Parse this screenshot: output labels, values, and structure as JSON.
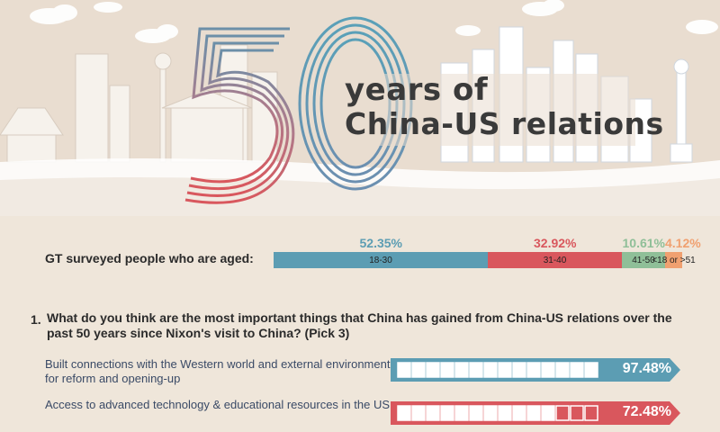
{
  "header": {
    "big_number": "50",
    "title_line1": "years of",
    "title_line2": "China-US relations"
  },
  "colors": {
    "teal": "#5c9db3",
    "red": "#d9575d",
    "green": "#8fbf98",
    "orange": "#f0a070",
    "background": "#efe6da"
  },
  "survey": {
    "label": "GT surveyed people who are aged:"
  },
  "question1": {
    "number": "1.",
    "text": "What do you think are the most important things that China has gained from China-US relations over the past 50 years since Nixon's visit to China? (Pick 3)"
  },
  "chart_data": [
    {
      "type": "bar",
      "title": "GT surveyed people who are aged:",
      "categories": [
        "18-30",
        "31-40",
        "41-50",
        "<18 or >51"
      ],
      "values": [
        52.35,
        32.92,
        10.61,
        4.12
      ],
      "value_labels": [
        "52.35%",
        "32.92%",
        "10.61%",
        "4.12%"
      ],
      "colors": [
        "#5c9db3",
        "#d9575d",
        "#8fbf98",
        "#f0a070"
      ]
    },
    {
      "type": "bar",
      "categories": [
        "Built connections with the Western world and external environment for reform and opening-up",
        "Access to advanced technology & educational resources in the US"
      ],
      "values": [
        97.48,
        72.48
      ],
      "value_labels": [
        "97.48%",
        "72.48%"
      ],
      "colors": [
        "#5c9db3",
        "#d9575d"
      ]
    }
  ]
}
